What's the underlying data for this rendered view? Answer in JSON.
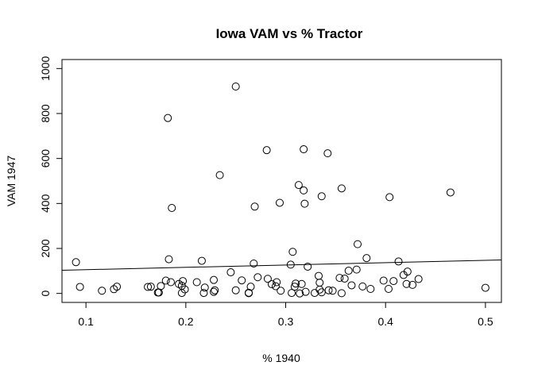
{
  "chart_data": {
    "type": "scatter",
    "title": "Iowa VAM vs % Tractor",
    "xlabel": "% 1940",
    "ylabel": "VAM 1947",
    "xlim": [
      0.076,
      0.516
    ],
    "ylim": [
      -40,
      1040
    ],
    "x_ticks": [
      0.1,
      0.2,
      0.3,
      0.4,
      0.5
    ],
    "x_tick_labels": [
      "0.1",
      "0.2",
      "0.3",
      "0.4",
      "0.5"
    ],
    "y_ticks": [
      0,
      200,
      400,
      600,
      800,
      1000
    ],
    "y_tick_labels": [
      "0",
      "200",
      "400",
      "600",
      "800",
      "1000"
    ],
    "grid": false,
    "legend": "none",
    "marker": "open-circle",
    "fit_line": {
      "x": [
        0.076,
        0.516
      ],
      "y": [
        103,
        149
      ]
    },
    "points": [
      [
        0.25,
        920
      ],
      [
        0.182,
        780
      ],
      [
        0.281,
        637
      ],
      [
        0.318,
        641
      ],
      [
        0.342,
        623
      ],
      [
        0.234,
        526
      ],
      [
        0.313,
        482
      ],
      [
        0.356,
        467
      ],
      [
        0.318,
        458
      ],
      [
        0.465,
        449
      ],
      [
        0.336,
        432
      ],
      [
        0.404,
        428
      ],
      [
        0.294,
        403
      ],
      [
        0.319,
        399
      ],
      [
        0.269,
        386
      ],
      [
        0.186,
        380
      ],
      [
        0.372,
        219
      ],
      [
        0.307,
        185
      ],
      [
        0.381,
        157
      ],
      [
        0.183,
        152
      ],
      [
        0.216,
        145
      ],
      [
        0.413,
        142
      ],
      [
        0.09,
        139
      ],
      [
        0.268,
        133
      ],
      [
        0.305,
        128
      ],
      [
        0.322,
        119
      ],
      [
        0.363,
        101
      ],
      [
        0.371,
        106
      ],
      [
        0.422,
        97
      ],
      [
        0.245,
        94
      ],
      [
        0.418,
        82
      ],
      [
        0.333,
        78
      ],
      [
        0.272,
        72
      ],
      [
        0.354,
        69
      ],
      [
        0.359,
        66
      ],
      [
        0.282,
        65
      ],
      [
        0.433,
        64
      ],
      [
        0.228,
        60
      ],
      [
        0.256,
        58
      ],
      [
        0.398,
        57
      ],
      [
        0.18,
        57
      ],
      [
        0.408,
        55
      ],
      [
        0.197,
        55
      ],
      [
        0.185,
        50
      ],
      [
        0.211,
        50
      ],
      [
        0.291,
        50
      ],
      [
        0.334,
        48
      ],
      [
        0.31,
        44
      ],
      [
        0.286,
        41
      ],
      [
        0.193,
        42
      ],
      [
        0.316,
        42
      ],
      [
        0.421,
        42
      ],
      [
        0.427,
        38
      ],
      [
        0.366,
        36
      ],
      [
        0.196,
        34
      ],
      [
        0.175,
        33
      ],
      [
        0.29,
        32
      ],
      [
        0.377,
        31
      ],
      [
        0.309,
        30
      ],
      [
        0.131,
        30
      ],
      [
        0.094,
        29
      ],
      [
        0.162,
        29
      ],
      [
        0.165,
        30
      ],
      [
        0.265,
        30
      ],
      [
        0.219,
        26
      ],
      [
        0.385,
        20
      ],
      [
        0.403,
        20
      ],
      [
        0.128,
        19
      ],
      [
        0.199,
        18
      ],
      [
        0.334,
        17
      ],
      [
        0.343,
        14
      ],
      [
        0.25,
        14
      ],
      [
        0.229,
        14
      ],
      [
        0.295,
        12
      ],
      [
        0.347,
        12
      ],
      [
        0.116,
        12
      ],
      [
        0.228,
        7
      ],
      [
        0.32,
        7
      ],
      [
        0.336,
        5
      ],
      [
        0.172,
        4
      ],
      [
        0.263,
        3
      ],
      [
        0.196,
        2
      ],
      [
        0.173,
        4
      ],
      [
        0.306,
        2
      ],
      [
        0.218,
        2
      ],
      [
        0.329,
        2
      ],
      [
        0.356,
        1
      ],
      [
        0.263,
        1
      ],
      [
        0.5,
        25
      ],
      [
        0.314,
        0
      ]
    ]
  }
}
